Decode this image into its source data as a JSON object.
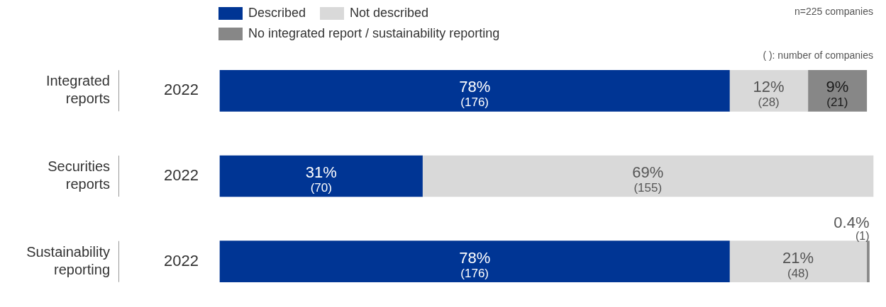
{
  "chart_data": {
    "type": "bar",
    "orientation": "horizontal",
    "stacked": true,
    "legend": "top left",
    "categories": [
      "Integrated reports",
      "Securities reports",
      "Sustainability reporting"
    ],
    "series": [
      {
        "name": "Described",
        "color": "#003594",
        "values": [
          78,
          31,
          78
        ],
        "value_labels": [
          "78%\n(176)",
          "31%\n(70)",
          "78%\n(176)"
        ]
      },
      {
        "name": "Not described",
        "color": "#d9d9d9",
        "values": [
          12,
          69,
          21
        ],
        "value_labels": [
          "12%\n(28)",
          "69%\n(155)",
          "21%\n(48)"
        ]
      },
      {
        "name": "No integrated report / sustainability reporting",
        "color": "#878787",
        "values": [
          9,
          null,
          0.4
        ],
        "value_labels": [
          "9%\n(21)",
          null,
          "0.4%\n(1)"
        ]
      }
    ],
    "annotations": [
      "n=225 companies",
      "( ): number of companies",
      "2022",
      "2022",
      "2022"
    ]
  }
}
